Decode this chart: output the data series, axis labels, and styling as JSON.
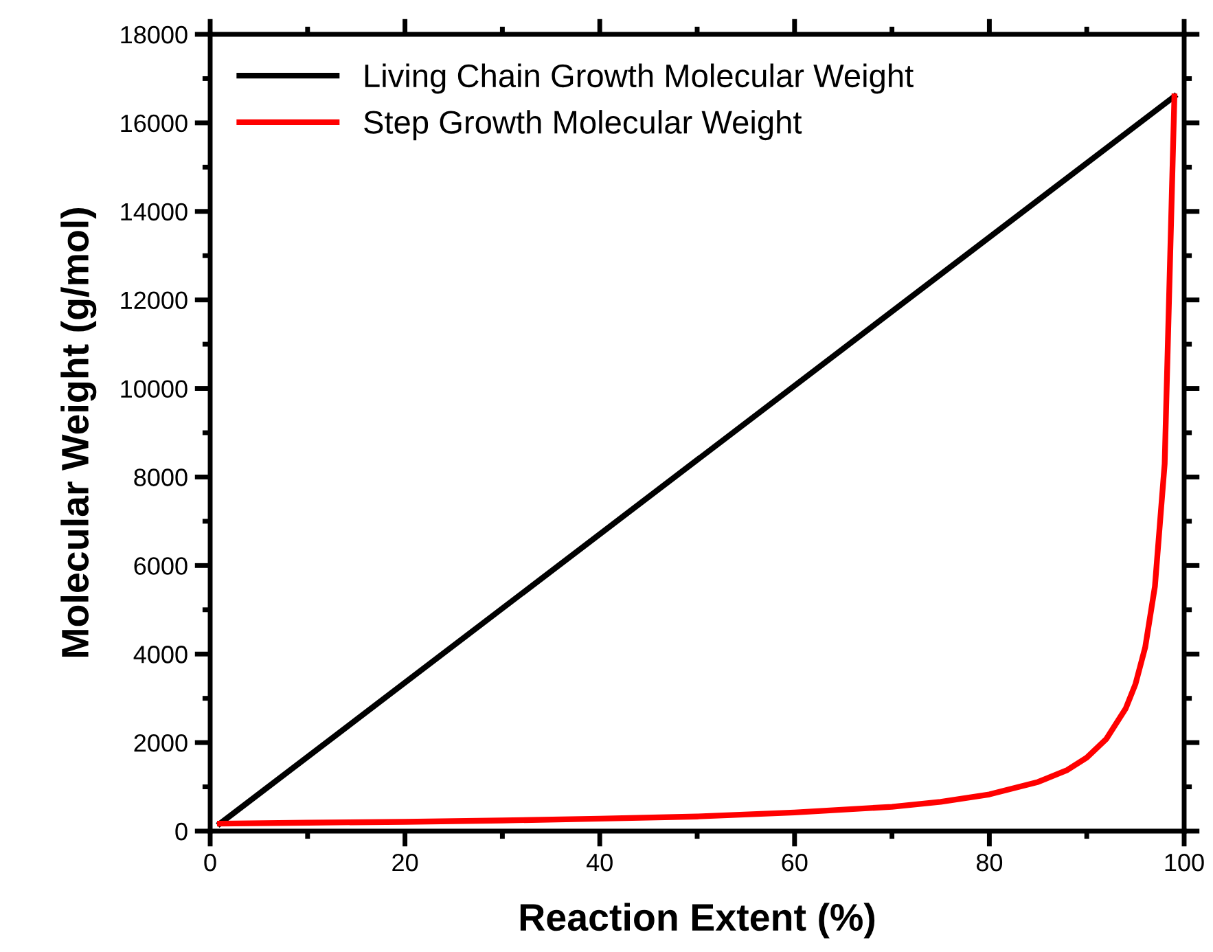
{
  "chart_data": {
    "type": "line",
    "xlabel": "Reaction Extent (%)",
    "ylabel": "Molecular Weight (g/mol)",
    "xlim": [
      0,
      100
    ],
    "xticks": [
      0,
      20,
      40,
      60,
      80,
      100
    ],
    "ylim": [
      0,
      18000
    ],
    "yticks": [
      0,
      2000,
      4000,
      6000,
      8000,
      10000,
      12000,
      14000,
      16000,
      18000
    ],
    "grid": false,
    "legend": "top left",
    "marker": "none",
    "line_style": "solid",
    "series": [
      {
        "name": "Living Chain Growth Molecular Weight",
        "color": "#000000",
        "x": [
          1,
          99
        ],
        "values": [
          170,
          16600
        ]
      },
      {
        "name": "Step Growth Molecular Weight",
        "color": "#ff0000",
        "x": [
          1,
          10,
          20,
          30,
          40,
          50,
          60,
          70,
          75,
          80,
          85,
          88,
          90,
          92,
          94,
          95,
          96,
          97,
          98,
          99
        ],
        "values": [
          170,
          190,
          210,
          240,
          280,
          330,
          420,
          550,
          660,
          830,
          1110,
          1380,
          1660,
          2080,
          2770,
          3320,
          4150,
          5530,
          8300,
          16600
        ]
      }
    ]
  }
}
